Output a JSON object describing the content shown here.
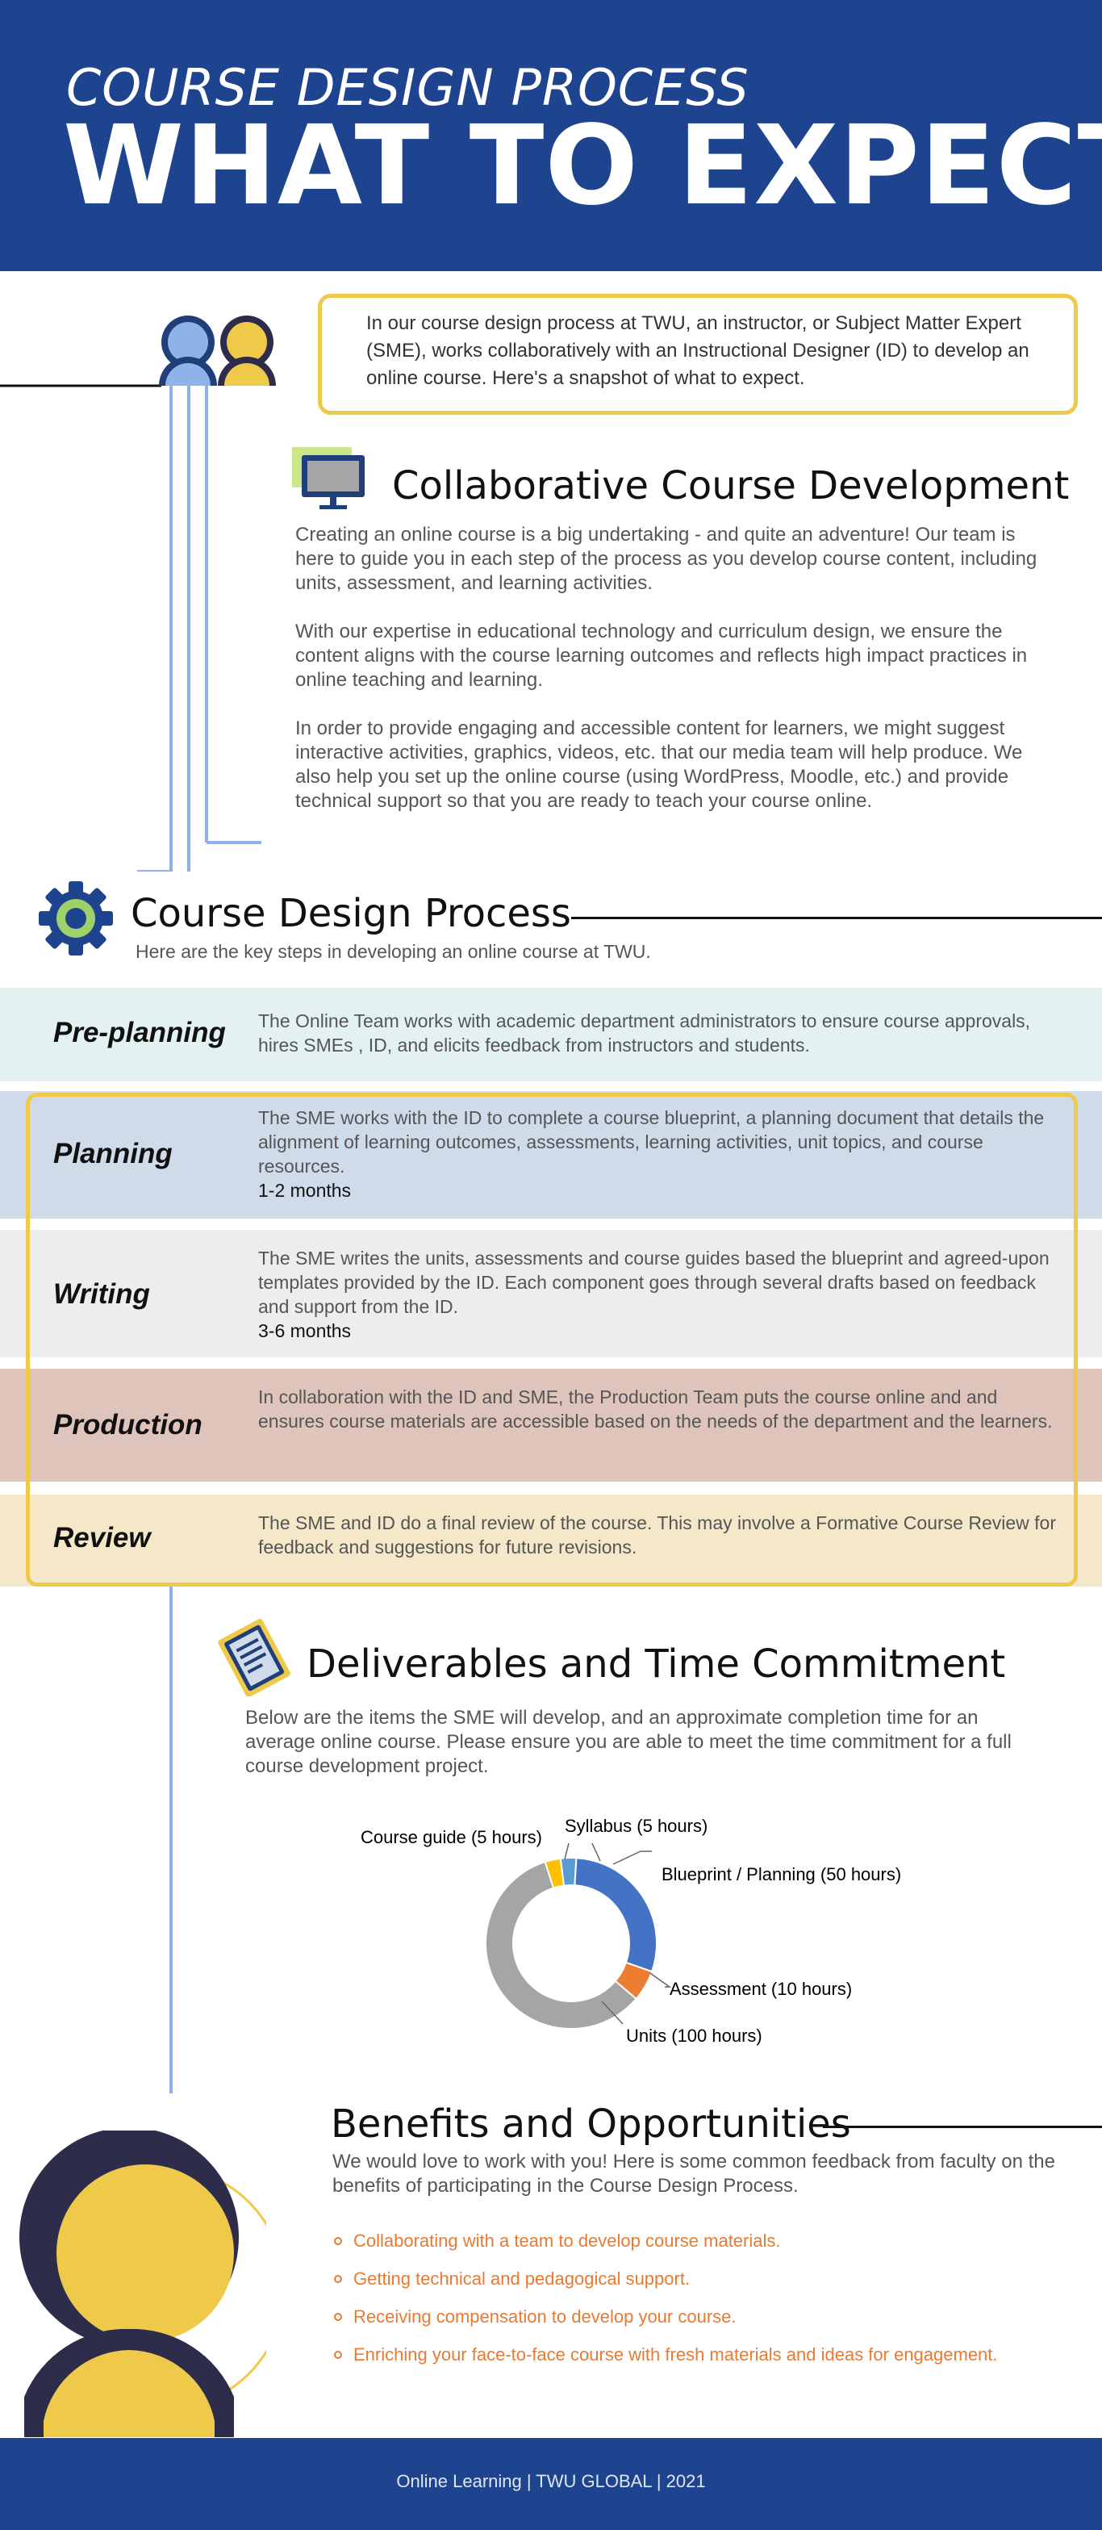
{
  "header": {
    "subtitle": "COURSE DESIGN PROCESS",
    "title": "WHAT TO EXPECT"
  },
  "intro": {
    "text": "In our course design process at TWU, an instructor, or Subject Matter Expert (SME), works collaboratively with an Instructional Designer (ID) to develop an online course. Here's a snapshot of what to expect."
  },
  "collab": {
    "title": "Collaborative Course Development",
    "p1": "Creating an online course is a big undertaking - and quite an adventure! Our team is here to guide you in each step of the process as you develop course content, including units, assessment, and learning activities.",
    "p2": "With our expertise in educational technology and curriculum design, we ensure the content aligns with the course learning outcomes and reflects high impact practices in online teaching and learning.",
    "p3": "In order to provide engaging and accessible content for learners, we might suggest interactive activities, graphics, videos, etc. that our media team will help produce. We also help you set up the online course (using WordPress, Moodle, etc.) and provide technical support so that you are ready to teach your course online."
  },
  "process": {
    "title": "Course Design Process",
    "subtitle": "Here are the key steps in developing an online course at TWU.",
    "stages": [
      {
        "name": "Pre-planning",
        "text": "The Online Team works with academic department administrators to ensure course approvals, hires SMEs , ID, and elicits feedback from instructors and students.",
        "time": ""
      },
      {
        "name": "Planning",
        "text": "The SME works with the ID to complete a course blueprint, a planning document that details the alignment of learning outcomes, assessments, learning activities, unit topics, and course resources.",
        "time": "1-2 months"
      },
      {
        "name": "Writing",
        "text": "The SME writes the units, assessments and course guides based the blueprint and agreed-upon templates provided by the ID. Each component goes through several drafts based on feedback and support from the ID.",
        "time": "3-6 months"
      },
      {
        "name": "Production",
        "text": "In collaboration with the ID and SME, the Production Team puts the course online and and ensures course materials are accessible based on the needs of the department and the learners.",
        "time": ""
      },
      {
        "name": "Review",
        "text": "The SME and ID do a final review of the course. This may involve a Formative Course Review for feedback and suggestions for future revisions.",
        "time": ""
      }
    ]
  },
  "deliverables": {
    "title": "Deliverables and Time Commitment",
    "text": "Below are the items the SME will develop, and an approximate completion time for an average online course. Please ensure you are able to meet the time commitment for a full course development project."
  },
  "chart_data": {
    "type": "pie",
    "donut": true,
    "title": "",
    "categories": [
      "Blueprint / Planning (50 hours)",
      "Assessment (10 hours)",
      "Units (100 hours)",
      "Course guide (5 hours)",
      "Syllabus (5 hours)"
    ],
    "values": [
      50,
      10,
      100,
      5,
      5
    ],
    "colors": [
      "#4472c4",
      "#ed7d31",
      "#a5a5a5",
      "#ffc000",
      "#5b9bd5"
    ],
    "legend": "none"
  },
  "benefits": {
    "title": "Benefits and Opportunities",
    "text": "We would love to work with you! Here is some common feedback from faculty on the benefits of participating in the Course Design Process.",
    "items": [
      "Collaborating with a team to develop course materials.",
      "Getting technical and pedagogical support.",
      "Receiving compensation to develop your course.",
      "Enriching your face-to-face course with fresh materials and ideas for engagement."
    ]
  },
  "footer": {
    "text": "Online Learning | TWU GLOBAL | 2021"
  }
}
